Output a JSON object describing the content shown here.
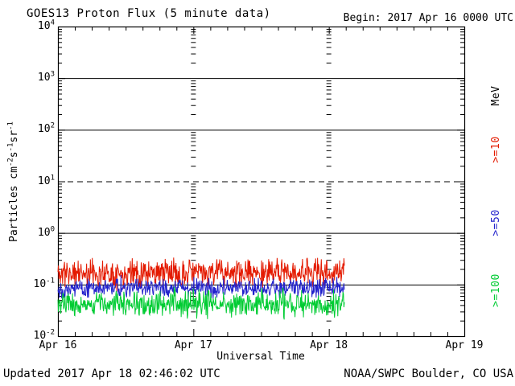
{
  "header": {
    "title": "GOES13 Proton Flux (5 minute data)",
    "begin": "Begin: 2017 Apr 16 0000 UTC"
  },
  "footer": {
    "updated": "Updated 2017 Apr 18 02:46:02 UTC",
    "credit": "NOAA/SWPC Boulder, CO USA"
  },
  "chart_data": {
    "type": "line",
    "title": "GOES13 Proton Flux (5 minute data)",
    "xlabel": "Universal Time",
    "ylabel": "Particles cm-2 s-1 sr-1",
    "ylabel_parts": [
      {
        "text": "Particles cm"
      },
      {
        "sup": "-2"
      },
      {
        "text": "s"
      },
      {
        "sup": "-1"
      },
      {
        "text": "sr"
      },
      {
        "sup": "-1"
      }
    ],
    "x_tick_labels": [
      "Apr 16",
      "Apr 17",
      "Apr 18",
      "Apr 19"
    ],
    "x_range_days": 3,
    "minor_x_ticks_per_day": 8,
    "y_tick_exponents": [
      4,
      3,
      2,
      1,
      0,
      -1,
      -2
    ],
    "ylim": [
      0.01,
      10000
    ],
    "grid": {
      "solid_y_exponents": [
        3,
        2,
        0,
        -1
      ],
      "dashed_y_exponents": [
        1
      ],
      "dashed_vertical_day_indices": [
        1,
        2
      ]
    },
    "legend": {
      "unit": "MeV",
      "unit_color": "#000000",
      "entries": [
        {
          "label": ">=10",
          "color": "#e41a00"
        },
        {
          "label": ">=50",
          "color": "#2222cc"
        },
        {
          "label": ">=100",
          "color": "#00cc33"
        }
      ]
    },
    "sample_minutes": 5,
    "data_end_days": 2.115,
    "series": [
      {
        "name": ">=10 MeV",
        "color": "#e41a00",
        "approx_mean": 0.17,
        "approx_min": 0.085,
        "approx_max": 0.4,
        "log_amp": 0.31,
        "seed": 11,
        "clamp_min": 0.01
      },
      {
        "name": ">=50 MeV",
        "color": "#2222cc",
        "approx_mean": 0.085,
        "approx_min": 0.05,
        "approx_max": 0.14,
        "log_amp": 0.21,
        "seed": 22,
        "clamp_min": 0.01
      },
      {
        "name": ">=100 MeV",
        "color": "#00cc33",
        "approx_mean": 0.042,
        "approx_min": 0.022,
        "approx_max": 0.085,
        "log_amp": 0.29,
        "seed": 33,
        "clamp_min": 0.021
      }
    ]
  }
}
